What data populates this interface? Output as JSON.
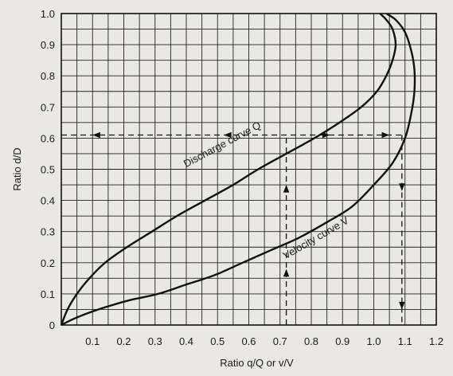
{
  "chart_data": {
    "type": "line",
    "xlabel": "Ratio q/Q or v/V",
    "ylabel": "Ratio d/D",
    "xlim": [
      0,
      1.2
    ],
    "ylim": [
      0,
      1.0
    ],
    "x_ticks": [
      "0.1",
      "0.2",
      "0.3",
      "0.4",
      "0.5",
      "0.6",
      "0.7",
      "0.8",
      "0.9",
      "1.0",
      "1.1",
      "1.2"
    ],
    "y_ticks": [
      "0",
      "0.1",
      "0.2",
      "0.3",
      "0.4",
      "0.5",
      "0.6",
      "0.7",
      "0.8",
      "0.9",
      "1.0"
    ],
    "grid": true,
    "series": [
      {
        "name": "Discharge curve Q",
        "x": [
          0,
          0.02,
          0.05,
          0.09,
          0.14,
          0.21,
          0.29,
          0.37,
          0.46,
          0.55,
          0.63,
          0.72,
          0.81,
          0.89,
          0.96,
          1.01,
          1.04,
          1.06,
          1.07,
          1.06,
          1.04,
          1.02
        ],
        "y": [
          0,
          0.05,
          0.1,
          0.15,
          0.2,
          0.25,
          0.3,
          0.35,
          0.4,
          0.45,
          0.5,
          0.55,
          0.6,
          0.65,
          0.7,
          0.75,
          0.8,
          0.85,
          0.9,
          0.95,
          0.98,
          1.0
        ]
      },
      {
        "name": "Velocity curve V",
        "x": [
          0,
          0.04,
          0.09,
          0.15,
          0.22,
          0.31,
          0.4,
          0.49,
          0.58,
          0.67,
          0.76,
          0.85,
          0.93,
          1.0,
          1.06,
          1.1,
          1.12,
          1.13,
          1.13,
          1.12,
          1.1,
          1.07,
          1.04
        ],
        "y": [
          0,
          0.02,
          0.04,
          0.06,
          0.08,
          0.1,
          0.13,
          0.16,
          0.2,
          0.24,
          0.28,
          0.33,
          0.38,
          0.45,
          0.52,
          0.6,
          0.68,
          0.75,
          0.82,
          0.88,
          0.94,
          0.98,
          1.0
        ]
      }
    ],
    "annotations": [
      {
        "text": "Discharge curve Q",
        "series": 0
      },
      {
        "text": "Velocity curve V",
        "series": 1
      }
    ],
    "reference_lines": {
      "depth": 0.61,
      "discharge_ratio": 0.72,
      "velocity_ratio": 1.09
    }
  }
}
